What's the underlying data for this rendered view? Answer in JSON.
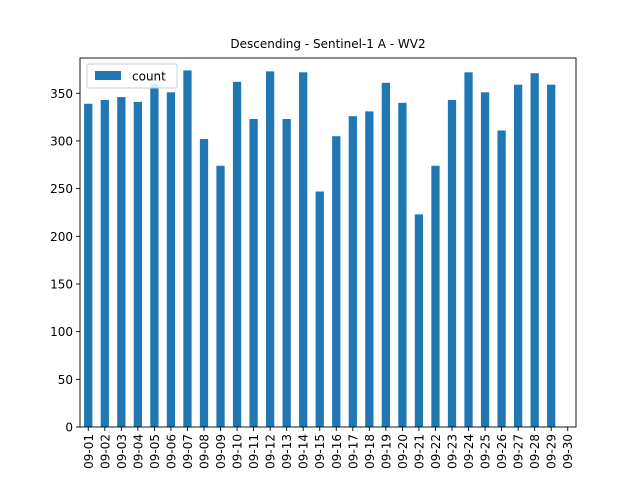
{
  "chart_data": {
    "type": "bar",
    "title": "Descending - Sentinel-1 A - WV2",
    "xlabel": "",
    "ylabel": "",
    "categories": [
      "09-01",
      "09-02",
      "09-03",
      "09-04",
      "09-05",
      "09-06",
      "09-07",
      "09-08",
      "09-09",
      "09-10",
      "09-11",
      "09-12",
      "09-13",
      "09-14",
      "09-15",
      "09-16",
      "09-17",
      "09-18",
      "09-19",
      "09-20",
      "09-21",
      "09-22",
      "09-23",
      "09-24",
      "09-25",
      "09-26",
      "09-27",
      "09-28",
      "09-29",
      "09-30"
    ],
    "series": [
      {
        "name": "count",
        "color": "#1f77b4",
        "values": [
          339,
          343,
          346,
          341,
          360,
          351,
          374,
          302,
          274,
          362,
          323,
          373,
          323,
          372,
          247,
          305,
          326,
          331,
          361,
          340,
          223,
          274,
          343,
          372,
          351,
          311,
          359,
          371,
          359,
          null
        ]
      }
    ],
    "ylim": [
      0,
      387
    ],
    "yticks": [
      0,
      50,
      100,
      150,
      200,
      250,
      300,
      350
    ],
    "legend": {
      "position": "top-left",
      "entries": [
        "count"
      ]
    },
    "grid": false
  }
}
